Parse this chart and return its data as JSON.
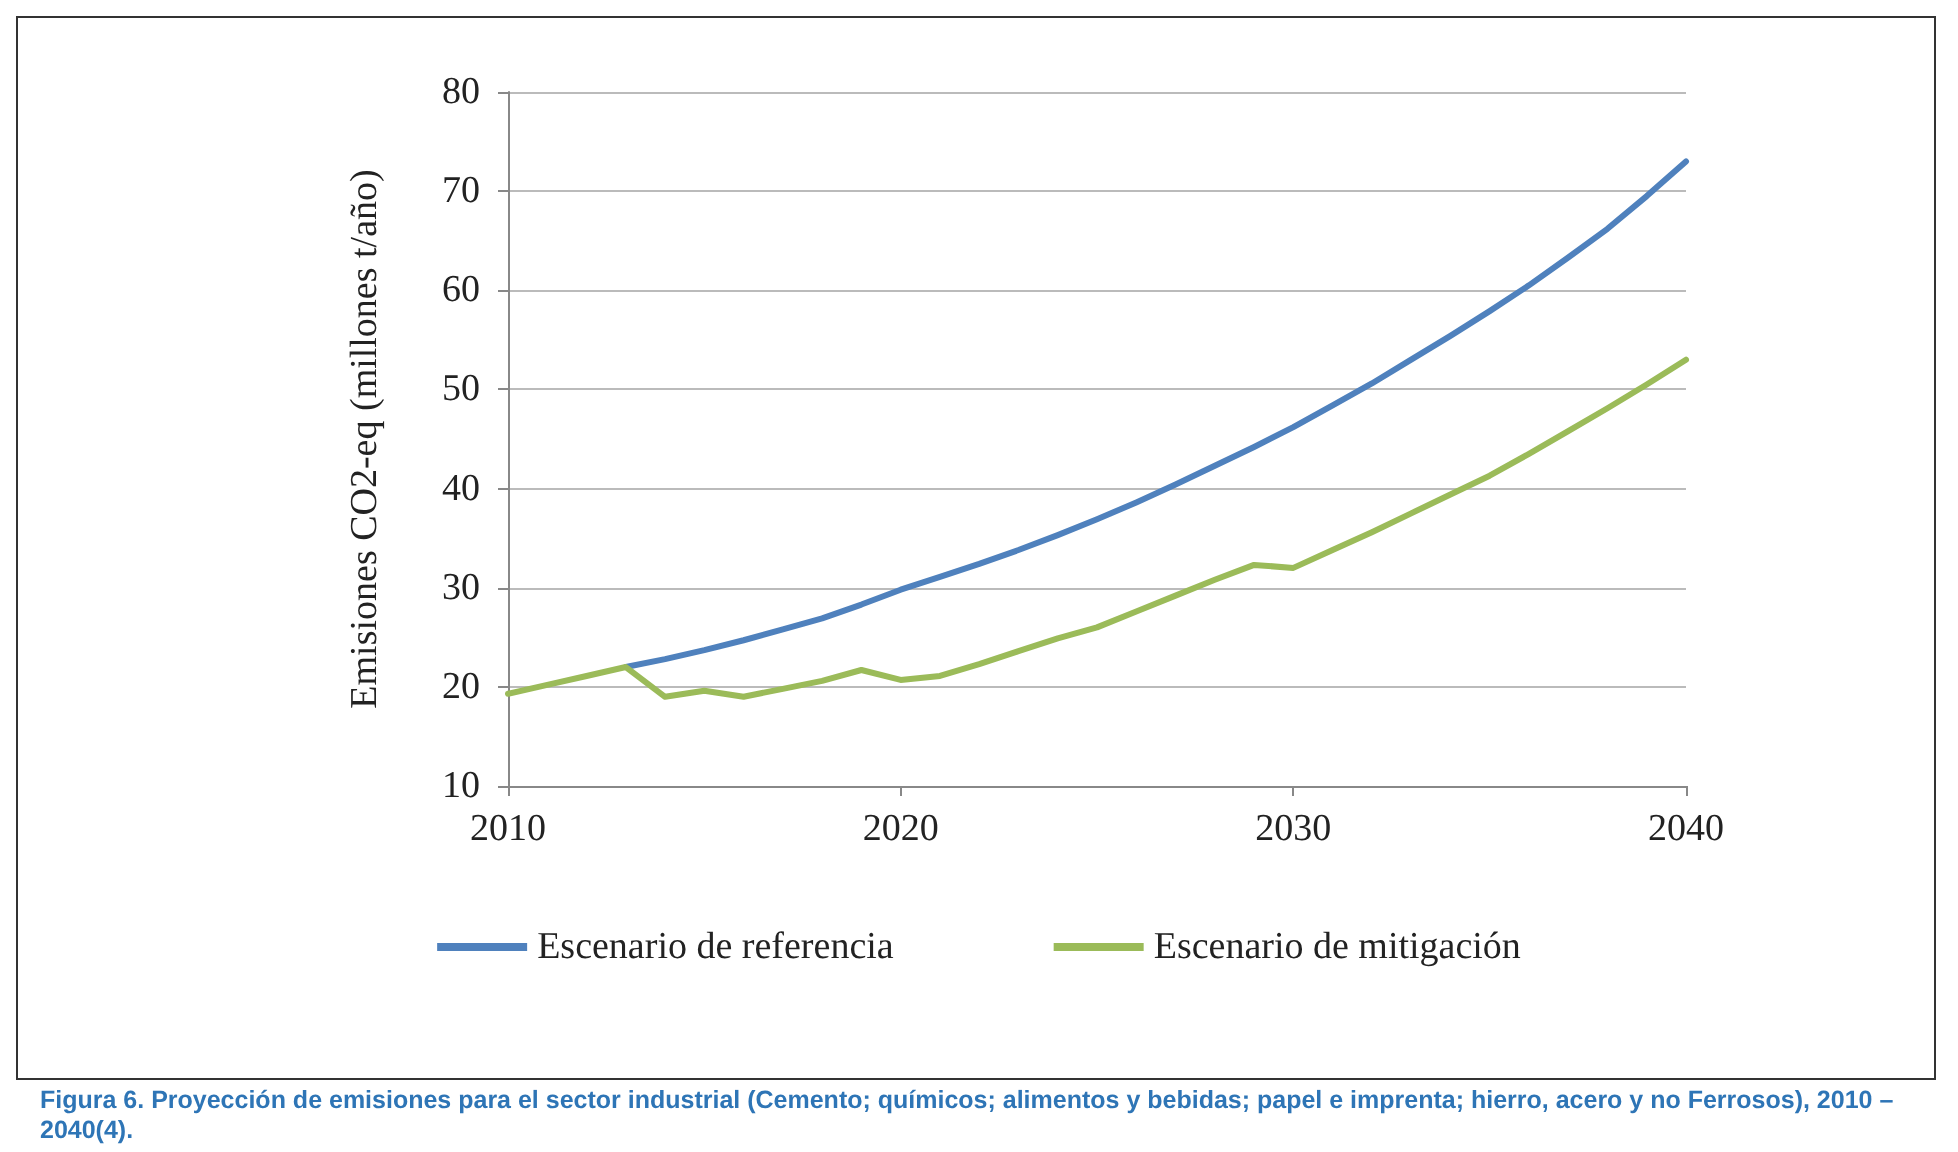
{
  "chart_data": {
    "type": "line",
    "ylabel": "Emisiones CO2-eq (millones t/año)",
    "x": [
      2010,
      2011,
      2012,
      2013,
      2014,
      2015,
      2016,
      2017,
      2018,
      2019,
      2020,
      2021,
      2022,
      2023,
      2024,
      2025,
      2026,
      2027,
      2028,
      2029,
      2030,
      2031,
      2032,
      2033,
      2034,
      2035,
      2036,
      2037,
      2038,
      2039,
      2040
    ],
    "series": [
      {
        "name": "Escenario de referencia",
        "color": "#4f81bd",
        "values": [
          null,
          null,
          null,
          22.0,
          22.8,
          23.7,
          24.7,
          25.8,
          26.9,
          28.3,
          29.8,
          31.1,
          32.4,
          33.8,
          35.3,
          36.9,
          38.6,
          40.4,
          42.3,
          44.2,
          46.2,
          48.4,
          50.6,
          53.0,
          55.4,
          57.9,
          60.5,
          63.3,
          66.2,
          69.5,
          73.0
        ]
      },
      {
        "name": "Escenario de mitigación",
        "color": "#9bbb59",
        "values": [
          19.3,
          20.2,
          21.1,
          22.0,
          19.0,
          19.6,
          19.0,
          19.8,
          20.6,
          21.7,
          20.7,
          21.1,
          22.3,
          23.6,
          24.9,
          26.0,
          27.6,
          29.2,
          30.8,
          32.3,
          32.0,
          33.8,
          35.6,
          37.5,
          39.4,
          41.3,
          43.5,
          45.8,
          48.1,
          50.5,
          53.0
        ]
      }
    ],
    "xlim": [
      2010,
      2040
    ],
    "xticks": [
      2010,
      2020,
      2030,
      2040
    ],
    "ylim": [
      10,
      80
    ],
    "yticks": [
      10,
      20,
      30,
      40,
      50,
      60,
      70,
      80
    ],
    "grid": "y",
    "legend": "bottom",
    "marker": "none",
    "line_style": "solid",
    "annotations": [
      "Figura 6. Proyección de emisiones para el sector industrial (Cemento; químicos; alimentos y bebidas; papel e imprenta; hierro, acero y no Ferrosos), 2010 – 2040(4)."
    ]
  }
}
